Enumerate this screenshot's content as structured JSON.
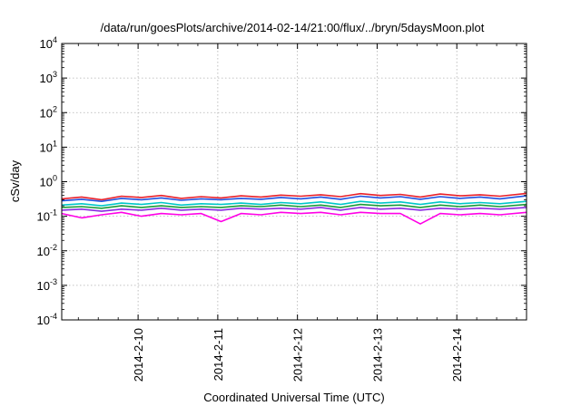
{
  "chart_data": {
    "type": "line",
    "title": "/data/run/goesPlots/archive/2014-02-14/21:00/flux/../bryn/5daysMoon.plot",
    "xlabel": "Coordinated Universal Time (UTC)",
    "ylabel": "cSv/day",
    "yscale": "log",
    "ylim": [
      0.0001,
      10000
    ],
    "xlim": [
      "2014-02-09 01:00",
      "2014-02-14 21:00"
    ],
    "grid": true,
    "y_ticks": [
      {
        "base": "10",
        "exp": "-4"
      },
      {
        "base": "10",
        "exp": "-3"
      },
      {
        "base": "10",
        "exp": "-2"
      },
      {
        "base": "10",
        "exp": "-1"
      },
      {
        "base": "10",
        "exp": "0"
      },
      {
        "base": "10",
        "exp": "1"
      },
      {
        "base": "10",
        "exp": "2"
      },
      {
        "base": "10",
        "exp": "3"
      },
      {
        "base": "10",
        "exp": "4"
      }
    ],
    "x_ticks": [
      "2014-2-10",
      "2014-2-11",
      "2014-2-12",
      "2014-2-13",
      "2014-2-14"
    ],
    "x": [
      "2014-02-09 01:00",
      "2014-02-09 07:00",
      "2014-02-09 13:00",
      "2014-02-09 19:00",
      "2014-02-10 01:00",
      "2014-02-10 07:00",
      "2014-02-10 13:00",
      "2014-02-10 19:00",
      "2014-02-11 01:00",
      "2014-02-11 07:00",
      "2014-02-11 13:00",
      "2014-02-11 19:00",
      "2014-02-12 01:00",
      "2014-02-12 07:00",
      "2014-02-12 13:00",
      "2014-02-12 19:00",
      "2014-02-13 01:00",
      "2014-02-13 07:00",
      "2014-02-13 13:00",
      "2014-02-13 19:00",
      "2014-02-14 01:00",
      "2014-02-14 07:00",
      "2014-02-14 13:00",
      "2014-02-14 21:00"
    ],
    "series": [
      {
        "color": "#e8202a",
        "values": [
          0.32,
          0.36,
          0.3,
          0.38,
          0.35,
          0.4,
          0.33,
          0.37,
          0.34,
          0.39,
          0.36,
          0.41,
          0.38,
          0.42,
          0.37,
          0.45,
          0.4,
          0.43,
          0.36,
          0.44,
          0.39,
          0.42,
          0.38,
          0.46
        ]
      },
      {
        "color": "#1f4fe0",
        "values": [
          0.28,
          0.31,
          0.27,
          0.33,
          0.3,
          0.34,
          0.29,
          0.32,
          0.3,
          0.33,
          0.31,
          0.35,
          0.32,
          0.36,
          0.31,
          0.38,
          0.34,
          0.37,
          0.31,
          0.37,
          0.33,
          0.36,
          0.32,
          0.39
        ]
      },
      {
        "color": "#00c8c8",
        "values": [
          0.21,
          0.23,
          0.2,
          0.24,
          0.22,
          0.25,
          0.21,
          0.23,
          0.22,
          0.24,
          0.22,
          0.25,
          0.23,
          0.26,
          0.22,
          0.27,
          0.24,
          0.26,
          0.22,
          0.26,
          0.23,
          0.25,
          0.23,
          0.27
        ]
      },
      {
        "color": "#1a9a3a",
        "values": [
          0.18,
          0.19,
          0.17,
          0.2,
          0.18,
          0.2,
          0.18,
          0.19,
          0.18,
          0.2,
          0.19,
          0.21,
          0.19,
          0.21,
          0.18,
          0.22,
          0.2,
          0.21,
          0.18,
          0.21,
          0.19,
          0.21,
          0.19,
          0.22
        ]
      },
      {
        "color": "#8a2be2",
        "values": [
          0.15,
          0.16,
          0.14,
          0.16,
          0.15,
          0.17,
          0.15,
          0.16,
          0.15,
          0.17,
          0.16,
          0.17,
          0.16,
          0.18,
          0.15,
          0.18,
          0.16,
          0.17,
          0.15,
          0.17,
          0.16,
          0.17,
          0.16,
          0.18
        ]
      },
      {
        "color": "#ff00e6",
        "values": [
          0.12,
          0.09,
          0.11,
          0.13,
          0.1,
          0.12,
          0.11,
          0.12,
          0.07,
          0.12,
          0.11,
          0.13,
          0.12,
          0.13,
          0.11,
          0.13,
          0.12,
          0.12,
          0.06,
          0.12,
          0.11,
          0.12,
          0.11,
          0.13
        ]
      }
    ]
  }
}
